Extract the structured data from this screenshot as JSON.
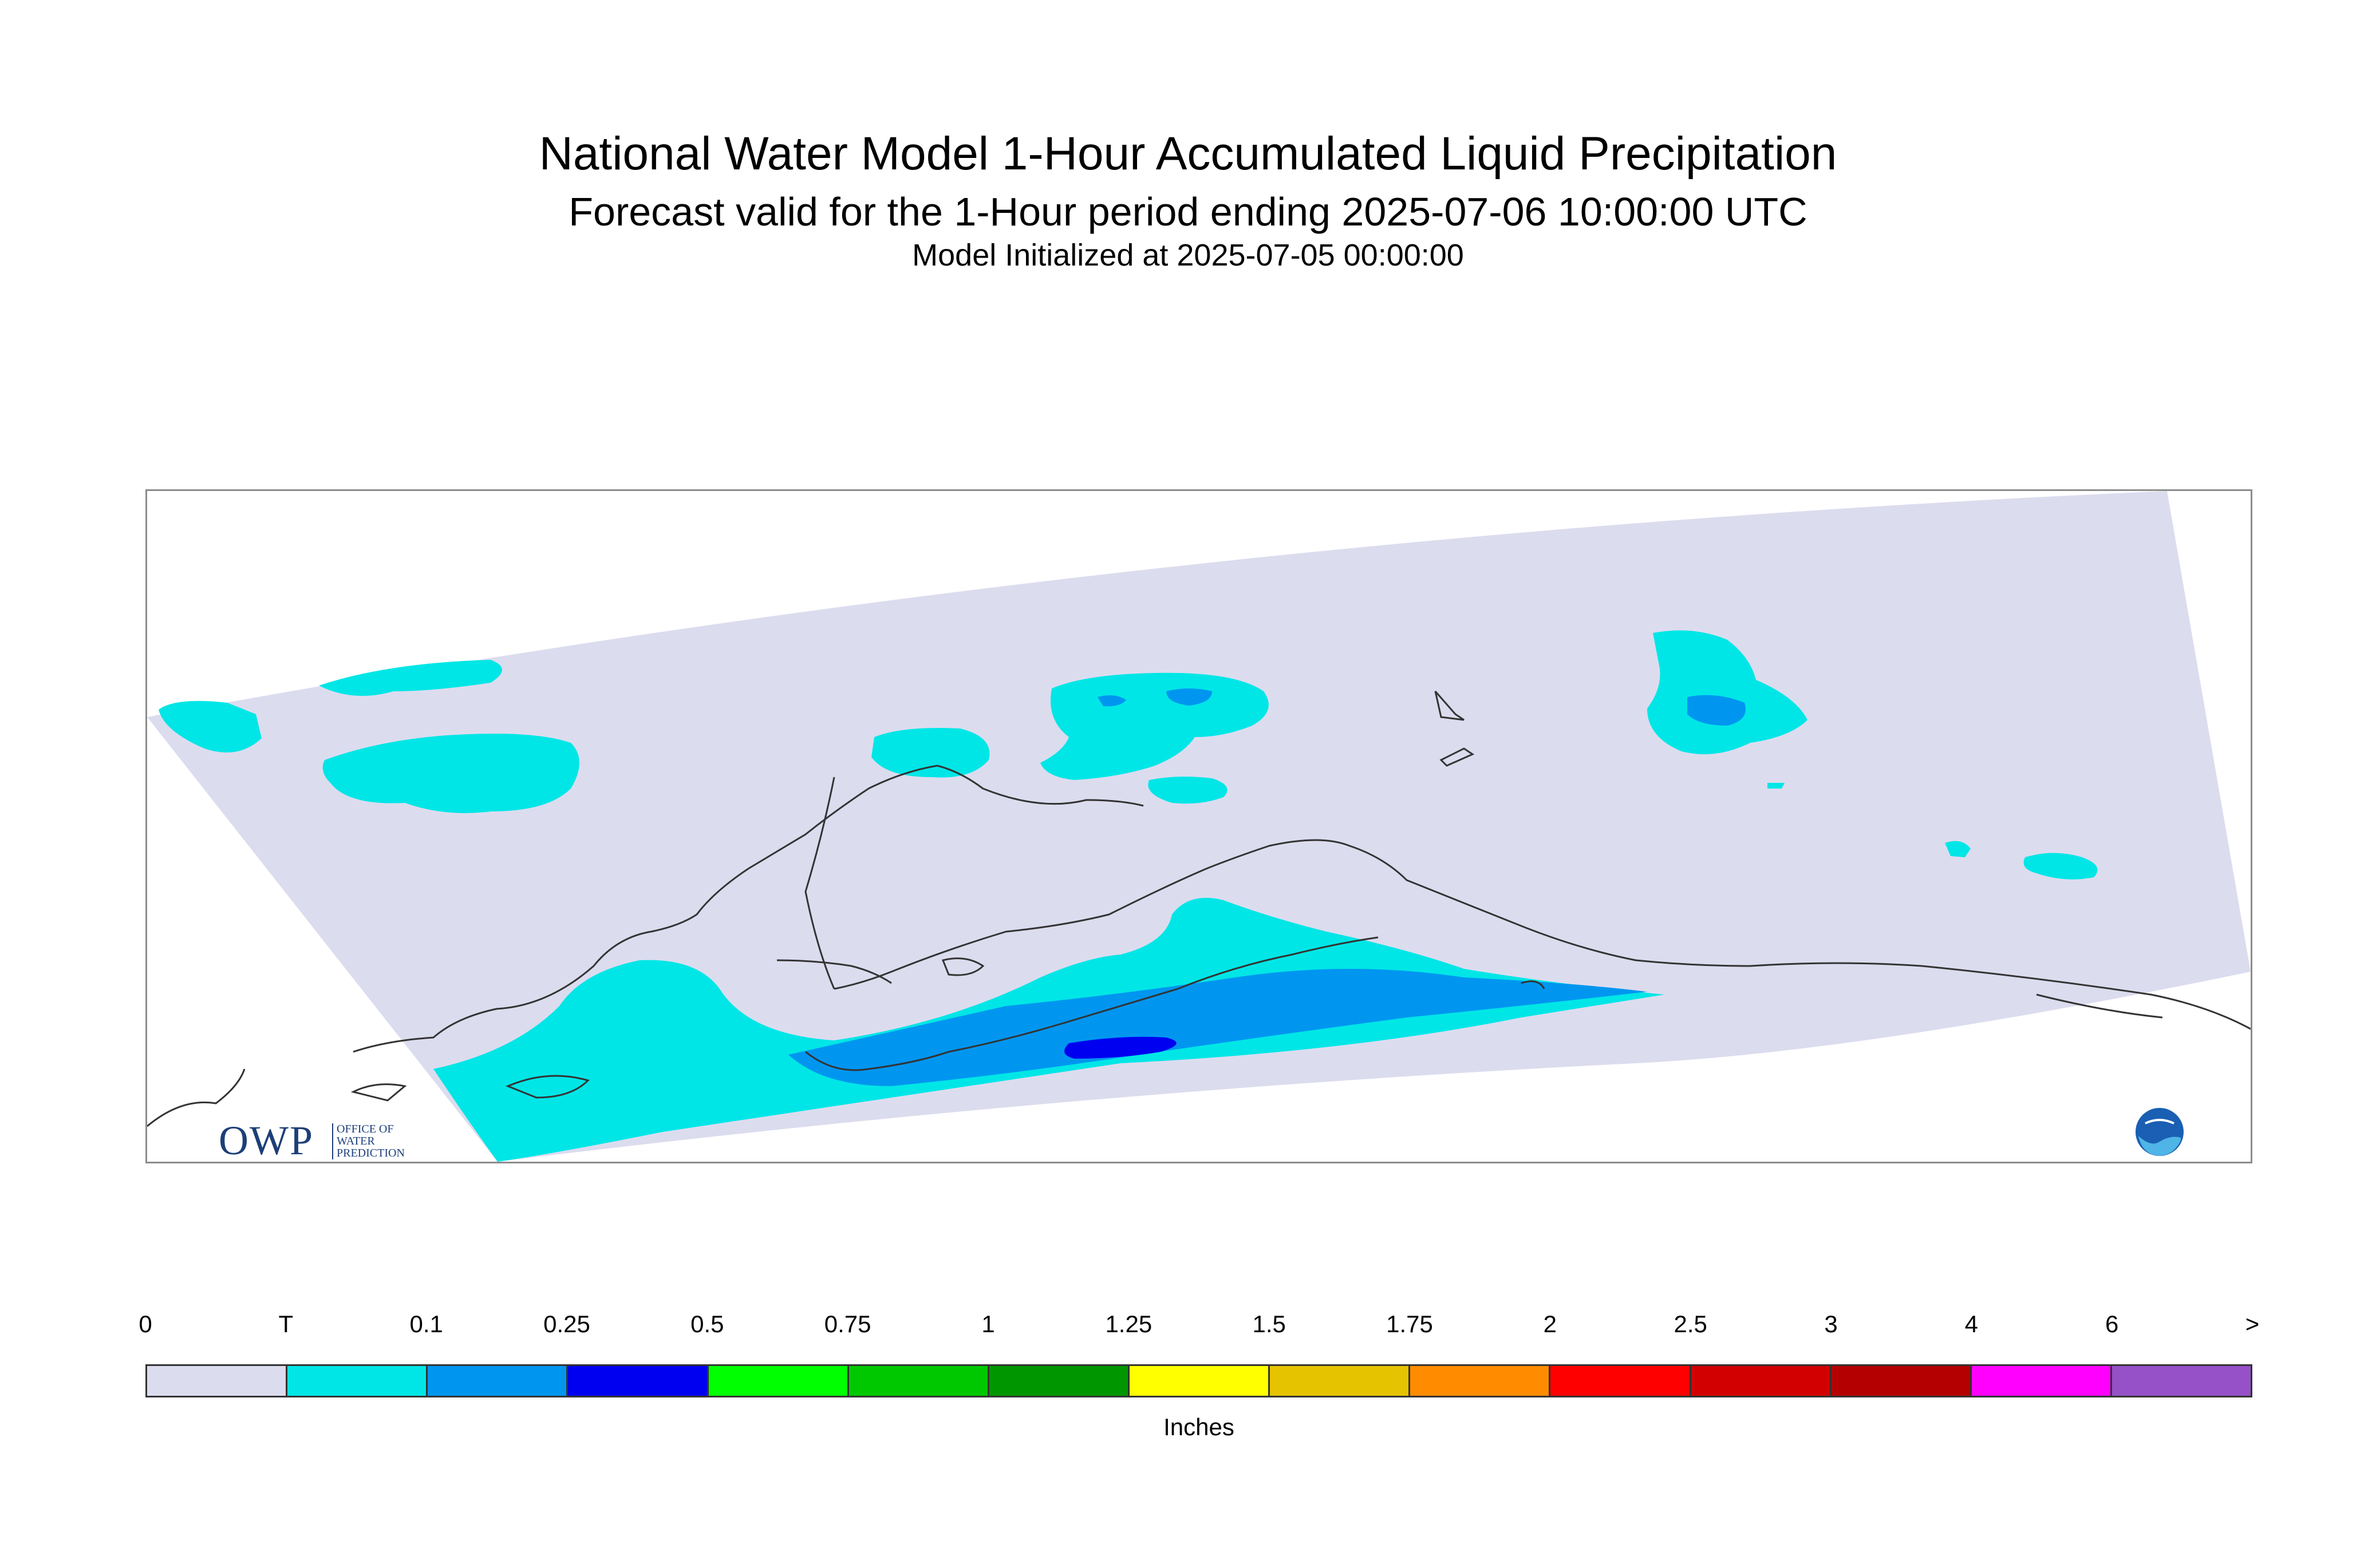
{
  "header": {
    "title": "National Water Model 1-Hour Accumulated Liquid Precipitation",
    "subtitle": "Forecast valid for the 1-Hour period ending 2025-07-06 10:00:00 UTC",
    "init": "Model Initialized at 2025-07-05 00:00:00"
  },
  "logos": {
    "owp_letters": "OWP",
    "owp_text_1": "OFFICE OF",
    "owp_text_2": "WATER",
    "owp_text_3": "PREDICTION",
    "noaa": "NOAA"
  },
  "legend": {
    "ticks": [
      "0",
      "T",
      "0.1",
      "0.25",
      "0.5",
      "0.75",
      "1",
      "1.25",
      "1.5",
      "1.75",
      "2",
      "2.5",
      "3",
      "4",
      "6",
      ">"
    ],
    "colors": [
      "#dcdcef",
      "#00e6e6",
      "#0096f0",
      "#0000f0",
      "#00ff00",
      "#00c800",
      "#009600",
      "#ffff00",
      "#e6c300",
      "#ff8c00",
      "#ff0000",
      "#d20000",
      "#b40000",
      "#ff00ff",
      "#9650c8"
    ],
    "units": "Inches"
  }
}
